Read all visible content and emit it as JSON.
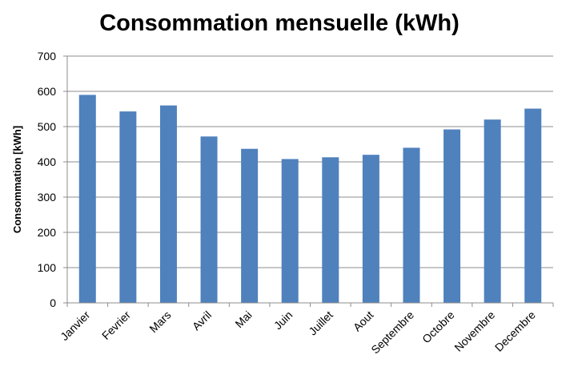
{
  "chart_data": {
    "type": "bar",
    "title": "Consommation mensuelle (kWh)",
    "xlabel": "",
    "ylabel": "Consommation [kWh]",
    "categories": [
      "Janvier",
      "Fevrier",
      "Mars",
      "Avril",
      "Mai",
      "Juin",
      "Juillet",
      "Aout",
      "Septembre",
      "Octobre",
      "Novembre",
      "Decembre"
    ],
    "values": [
      590,
      543,
      560,
      472,
      437,
      408,
      413,
      420,
      440,
      492,
      520,
      551
    ],
    "ylim": [
      0,
      700
    ],
    "yticks": [
      0,
      100,
      200,
      300,
      400,
      500,
      600,
      700
    ],
    "grid": true,
    "legend": "none",
    "colors": {
      "bar": "#4F81BD",
      "grid": "#8C8C8C",
      "axis": "#8C8C8C",
      "text": "#000000"
    }
  }
}
